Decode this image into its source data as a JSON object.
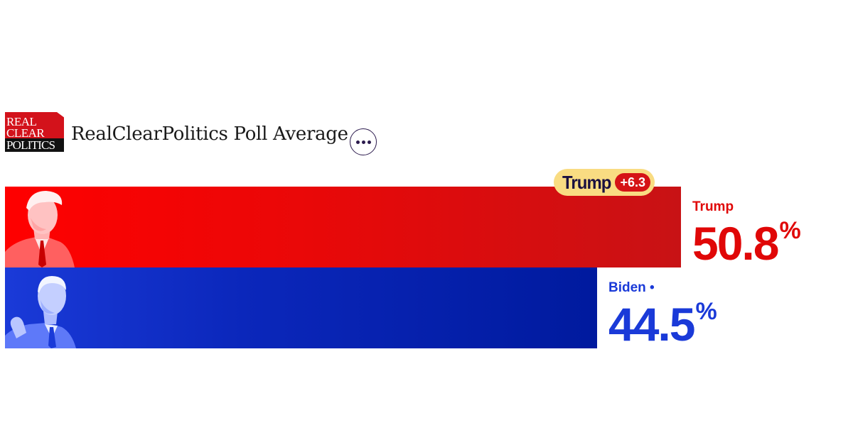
{
  "header": {
    "logo_lines": [
      "REAL",
      "CLEAR",
      "POLITICS"
    ],
    "title": "RealClearPolitics Poll Average",
    "more_icon": "more-horizontal-icon"
  },
  "leader": {
    "name": "Trump",
    "margin": "+6.3"
  },
  "colors": {
    "trump": "#e00707",
    "biden": "#1a3ad8",
    "badge": "#f9dc82"
  },
  "chart_data": {
    "type": "bar",
    "orientation": "horizontal",
    "title": "RealClearPolitics Poll Average",
    "categories": [
      "Trump",
      "Biden"
    ],
    "values": [
      50.8,
      44.5
    ],
    "series": [
      {
        "name": "Trump",
        "value": 50.8,
        "value_label": "50.8",
        "label": "Trump",
        "unit": "%",
        "color": "#e00707",
        "photo_icon": "trump-portrait-icon"
      },
      {
        "name": "Biden",
        "value": 44.5,
        "value_label": "44.5",
        "label": "Biden •",
        "unit": "%",
        "color": "#1a3ad8",
        "photo_icon": "biden-portrait-icon"
      }
    ]
  }
}
